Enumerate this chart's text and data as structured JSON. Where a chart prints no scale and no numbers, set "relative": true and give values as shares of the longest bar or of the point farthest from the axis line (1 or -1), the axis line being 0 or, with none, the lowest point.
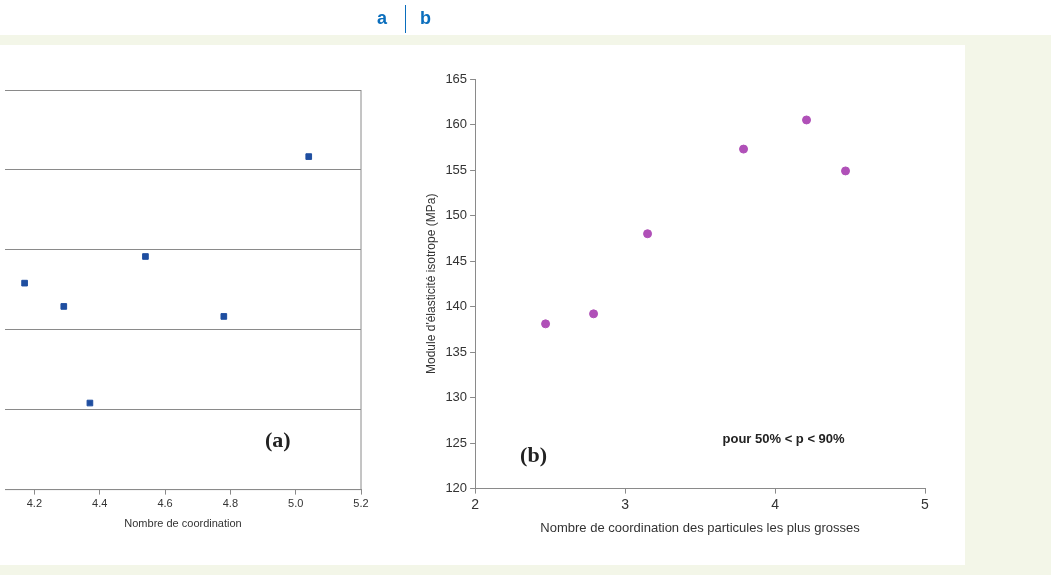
{
  "chart_data": [
    {
      "type": "scatter",
      "title": "a",
      "xlabel": "Nombre de coordination",
      "relative": true,
      "grid": "y",
      "marker": "square",
      "tick_labels": "x",
      "annotations": [
        "(a)"
      ],
      "xlim": [
        4.11,
        5.2
      ],
      "xticks": [
        4.2,
        4.4,
        4.6,
        4.8,
        {
          "value": 5.0,
          "label": "5.0"
        },
        5.2
      ],
      "series": [
        {
          "color": "#1f4ea0",
          "x": [
            4.17,
            4.29,
            4.37,
            4.54,
            4.78,
            5.04
          ],
          "values": [
            0.62,
            0.55,
            0.26,
            0.7,
            0.52,
            1
          ]
        }
      ]
    },
    {
      "type": "scatter",
      "title": "b",
      "xlabel": "Nombre de coordination des particules les plus grosses",
      "ylabel": "Module d'élasticité isotrope (MPa)",
      "marker": "circle",
      "grid": false,
      "annotations": [
        "(b)",
        "pour 50% < p < 90%"
      ],
      "xlim": [
        2,
        5
      ],
      "xticks": [
        2,
        3,
        4,
        5
      ],
      "ylim": [
        120,
        165
      ],
      "yticks": [
        120,
        125,
        130,
        135,
        140,
        145,
        150,
        155,
        160,
        165
      ],
      "series": [
        {
          "color": "#b050b8",
          "x": [
            2.47,
            2.79,
            3.15,
            3.79,
            4.21,
            4.47
          ],
          "values": [
            138.1,
            139.2,
            148.0,
            157.3,
            160.5,
            154.9
          ]
        }
      ]
    }
  ]
}
